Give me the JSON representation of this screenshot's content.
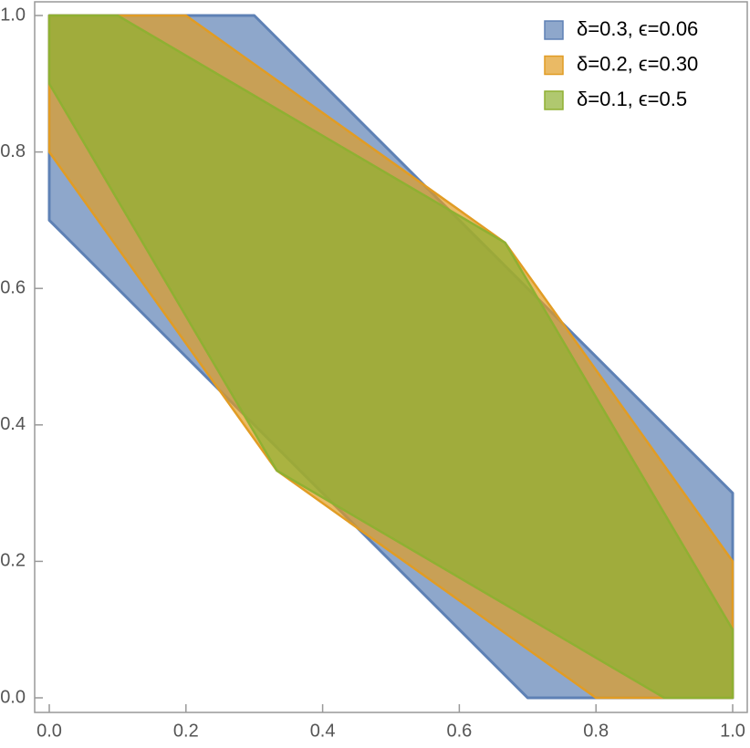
{
  "chart_data": {
    "type": "polygon",
    "series": [
      {
        "name": "δ=0.3, ϵ=0.06",
        "color": "#5e81b5",
        "x": [
          0,
          0,
          0.3,
          1,
          1,
          0.7
        ],
        "y": [
          0.7,
          1,
          1,
          0.3,
          0,
          0
        ]
      },
      {
        "name": "δ=0.2, ϵ=0.30",
        "color": "#e19c24",
        "x": [
          0,
          0,
          0.2,
          0.667,
          1,
          1,
          0.8,
          0.333
        ],
        "y": [
          0.8,
          1,
          1,
          0.667,
          0.2,
          0,
          0,
          0.333
        ]
      },
      {
        "name": "δ=0.1, ϵ=0.5",
        "color": "#8fb032",
        "x": [
          0,
          0,
          0.1,
          0.667,
          1,
          1,
          0.9,
          0.333
        ],
        "y": [
          0.9,
          1,
          1,
          0.667,
          0.1,
          0,
          0,
          0.333
        ]
      }
    ],
    "xlim": [
      0,
      1
    ],
    "ylim": [
      0,
      1
    ],
    "xticks": [
      {
        "value": 0,
        "label": "0.0"
      },
      0.2,
      0.4,
      0.6,
      0.8,
      {
        "value": 1,
        "label": "1.0"
      }
    ],
    "yticks": [
      {
        "value": 0,
        "label": "0.0"
      },
      0.2,
      0.4,
      0.6,
      0.8,
      {
        "value": 1,
        "label": "1.0"
      }
    ],
    "legend": "top-right"
  }
}
